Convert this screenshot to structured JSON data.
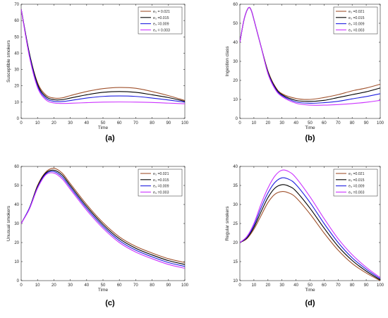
{
  "chart_data": [
    {
      "type": "line",
      "panel_label": "(a)",
      "xlabel": "Time",
      "ylabel": "Susceptible smokers",
      "xlim": [
        0,
        100
      ],
      "ylim": [
        0,
        70
      ],
      "xticks": [
        0,
        10,
        20,
        30,
        40,
        50,
        60,
        70,
        80,
        90,
        100
      ],
      "yticks": [
        0,
        10,
        20,
        30,
        40,
        50,
        60,
        70
      ],
      "grid": false,
      "legend_position": "top-right",
      "x": [
        0,
        5,
        10,
        15,
        20,
        25,
        30,
        40,
        50,
        60,
        70,
        80,
        90,
        100
      ],
      "series": [
        {
          "name": "e₃ = 0.021",
          "color": "#a0522d",
          "values": [
            67,
            40,
            22,
            14.5,
            12.5,
            12.6,
            14,
            16.5,
            18.3,
            19,
            18.5,
            16.5,
            14,
            11
          ]
        },
        {
          "name": "e₃ =0.015",
          "color": "#000000",
          "values": [
            67,
            40,
            21,
            13.5,
            11.5,
            11.5,
            12.5,
            14.5,
            16,
            16.5,
            16,
            14.5,
            12.8,
            10.5
          ]
        },
        {
          "name": "e₃ =0.009",
          "color": "#1f1fe0",
          "values": [
            67,
            39,
            20,
            12.5,
            10.5,
            10.4,
            11,
            12.5,
            13.5,
            13.8,
            13.5,
            12.5,
            11.3,
            10
          ]
        },
        {
          "name": "e₃ = 0.003",
          "color": "#cc33ff",
          "values": [
            67,
            38,
            19,
            11.5,
            9.5,
            9.2,
            9.3,
            9.7,
            10,
            10.1,
            10,
            9.8,
            9.4,
            9
          ]
        }
      ]
    },
    {
      "type": "line",
      "panel_label": "(b)",
      "xlabel": "Time",
      "ylabel": "Ingestion class",
      "xlim": [
        0,
        100
      ],
      "ylim": [
        0,
        60
      ],
      "xticks": [
        0,
        10,
        20,
        30,
        40,
        50,
        60,
        70,
        80,
        90,
        100
      ],
      "yticks": [
        0,
        10,
        20,
        30,
        40,
        50,
        60
      ],
      "grid": false,
      "legend_position": "top-right",
      "x": [
        0,
        3,
        6,
        8,
        10,
        15,
        20,
        25,
        30,
        40,
        50,
        60,
        70,
        80,
        90,
        100
      ],
      "series": [
        {
          "name": "e₃ =0.021",
          "color": "#a0522d",
          "values": [
            40,
            52,
            58,
            57,
            52,
            38,
            25,
            17,
            13,
            10.5,
            10,
            11,
            12.5,
            14.5,
            16,
            18
          ]
        },
        {
          "name": "e₃ =0.015",
          "color": "#000000",
          "values": [
            40,
            52,
            58,
            57,
            52,
            38,
            24.5,
            16.5,
            12.5,
            9.5,
            9,
            9.5,
            11,
            12.5,
            14,
            16
          ]
        },
        {
          "name": "e₃ =0.009",
          "color": "#1f1fe0",
          "values": [
            40,
            52,
            58,
            57,
            52,
            38,
            24,
            16,
            12,
            8.7,
            8,
            8.3,
            9,
            10.3,
            11.5,
            13
          ]
        },
        {
          "name": "e₃ =0.003",
          "color": "#cc33ff",
          "values": [
            40,
            52,
            58,
            57,
            52,
            38,
            23.5,
            15.5,
            11.5,
            8,
            7,
            7,
            7.3,
            7.8,
            8.5,
            9.5
          ]
        }
      ]
    },
    {
      "type": "line",
      "panel_label": "(c)",
      "xlabel": "Time",
      "ylabel": "Unusual smokers",
      "xlim": [
        0,
        100
      ],
      "ylim": [
        0,
        60
      ],
      "xticks": [
        0,
        10,
        20,
        30,
        40,
        50,
        60,
        70,
        80,
        90,
        100
      ],
      "yticks": [
        0,
        10,
        20,
        30,
        40,
        50,
        60
      ],
      "grid": false,
      "legend_position": "top-right",
      "x": [
        0,
        5,
        10,
        15,
        20,
        25,
        30,
        40,
        50,
        60,
        70,
        80,
        90,
        100
      ],
      "series": [
        {
          "name": "e₃ =0.021",
          "color": "#a0522d",
          "values": [
            30,
            38,
            50,
            57,
            59,
            56.5,
            51,
            40,
            30.5,
            23,
            18,
            14.5,
            11.5,
            9.5
          ]
        },
        {
          "name": "e₃ =0.015",
          "color": "#000000",
          "values": [
            30,
            38,
            49.5,
            56.5,
            58,
            55.5,
            50,
            39,
            29.5,
            22,
            17,
            13.5,
            10.5,
            8.5
          ]
        },
        {
          "name": "e₃ =0.009",
          "color": "#1f1fe0",
          "values": [
            30,
            38,
            49,
            56,
            57.3,
            54.5,
            49,
            38,
            28.5,
            21,
            16,
            12.5,
            9.5,
            7.5
          ]
        },
        {
          "name": "e₃ =0.003",
          "color": "#cc33ff",
          "values": [
            30,
            37.5,
            48.5,
            55.5,
            56.5,
            53.5,
            48,
            37,
            27.5,
            20,
            15,
            11.5,
            8.5,
            6.5
          ]
        }
      ]
    },
    {
      "type": "line",
      "panel_label": "(d)",
      "xlabel": "Time",
      "ylabel": "Regular smokers",
      "xlim": [
        0,
        100
      ],
      "ylim": [
        10,
        40
      ],
      "xticks": [
        0,
        10,
        20,
        30,
        40,
        50,
        60,
        70,
        80,
        90,
        100
      ],
      "yticks": [
        10,
        15,
        20,
        25,
        30,
        35,
        40
      ],
      "grid": false,
      "legend_position": "top-right",
      "x": [
        0,
        5,
        10,
        15,
        20,
        25,
        30,
        35,
        40,
        50,
        60,
        70,
        80,
        90,
        100
      ],
      "series": [
        {
          "name": "e₃ =0.021",
          "color": "#a0522d",
          "values": [
            20,
            21,
            23.5,
            27,
            30.5,
            32.7,
            33.4,
            33,
            31.8,
            27.5,
            22.5,
            18,
            14.5,
            12,
            10
          ]
        },
        {
          "name": "e₃ =0.015",
          "color": "#000000",
          "values": [
            20,
            21.2,
            24,
            28,
            31.8,
            34.3,
            35.2,
            34.8,
            33.5,
            29,
            23.8,
            19,
            15.3,
            12.5,
            10.2
          ]
        },
        {
          "name": "e₃ =0.009",
          "color": "#1f1fe0",
          "values": [
            20,
            21.4,
            24.5,
            29,
            33,
            35.8,
            37,
            36.6,
            35.2,
            30.5,
            25,
            20,
            16,
            13,
            10.5
          ]
        },
        {
          "name": "e₃ =0.003",
          "color": "#cc33ff",
          "values": [
            20,
            21.6,
            25,
            30,
            34.3,
            37.5,
            39,
            38.6,
            37,
            32,
            26.3,
            21,
            16.8,
            13.5,
            10.8
          ]
        }
      ]
    }
  ]
}
